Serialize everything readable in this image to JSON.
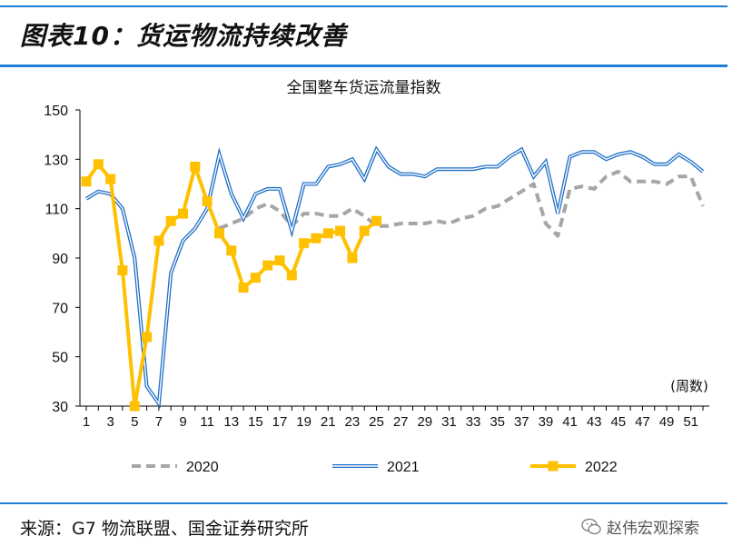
{
  "header": {
    "figure_title": "图表10：货运物流持续改善"
  },
  "footer": {
    "source": "来源：G7 物流联盟、国金证券研究所",
    "watermark": "赵伟宏观探索",
    "watermark_icon": "wechat-icon"
  },
  "colors": {
    "rule": "#1f7ed8",
    "s2020": "#a6a6a6",
    "s2021": "#1f6fc5",
    "s2022": "#ffc000"
  },
  "chart_data": {
    "type": "line",
    "title": "全国整车货运流量指数",
    "xlabel": "(周数)",
    "ylabel": "",
    "ylim": [
      30,
      150
    ],
    "yticks": [
      30,
      50,
      70,
      90,
      110,
      130,
      150
    ],
    "xlim": [
      1,
      52
    ],
    "xticks": [
      1,
      3,
      5,
      7,
      9,
      11,
      13,
      15,
      17,
      19,
      21,
      23,
      25,
      27,
      29,
      31,
      33,
      35,
      37,
      39,
      41,
      43,
      45,
      47,
      49,
      51
    ],
    "grid": false,
    "legend": "bottom",
    "series": [
      {
        "name": "2020",
        "style": "dashed",
        "x": [
          12,
          13,
          14,
          15,
          16,
          17,
          18,
          19,
          20,
          21,
          22,
          23,
          24,
          25,
          26,
          27,
          28,
          29,
          30,
          31,
          32,
          33,
          34,
          35,
          36,
          37,
          38,
          39,
          40,
          41,
          42,
          43,
          44,
          45,
          46,
          47,
          48,
          49,
          50,
          51,
          52
        ],
        "values": [
          102,
          104,
          106,
          110,
          112,
          109,
          103,
          108,
          108,
          107,
          107,
          110,
          107,
          103,
          103,
          104,
          104,
          104,
          105,
          104,
          106,
          107,
          110,
          111,
          114,
          117,
          120,
          104,
          99,
          118,
          119,
          118,
          123,
          125,
          121,
          121,
          121,
          120,
          123,
          123,
          111
        ]
      },
      {
        "name": "2021",
        "style": "double",
        "x": [
          1,
          2,
          3,
          4,
          5,
          6,
          7,
          8,
          9,
          10,
          11,
          12,
          13,
          14,
          15,
          16,
          17,
          18,
          19,
          20,
          21,
          22,
          23,
          24,
          25,
          26,
          27,
          28,
          29,
          30,
          31,
          32,
          33,
          34,
          35,
          36,
          37,
          38,
          39,
          40,
          41,
          42,
          43,
          44,
          45,
          46,
          47,
          48,
          49,
          50,
          51,
          52
        ],
        "values": [
          114,
          117,
          116,
          110,
          90,
          38,
          31,
          84,
          97,
          102,
          110,
          132,
          116,
          106,
          116,
          118,
          118,
          101,
          120,
          120,
          127,
          128,
          130,
          122,
          134,
          127,
          124,
          124,
          123,
          126,
          126,
          126,
          126,
          127,
          127,
          131,
          134,
          123,
          129,
          108,
          131,
          133,
          133,
          130,
          132,
          133,
          131,
          128,
          128,
          132,
          129,
          125
        ]
      },
      {
        "name": "2022",
        "style": "solid-square",
        "x": [
          1,
          2,
          3,
          4,
          5,
          6,
          7,
          8,
          9,
          10,
          11,
          12,
          13,
          14,
          15,
          16,
          17,
          18,
          19,
          20,
          21,
          22,
          23,
          24,
          25
        ],
        "values": [
          121,
          128,
          122,
          85,
          30,
          58,
          97,
          105,
          108,
          127,
          113,
          100,
          93,
          78,
          82,
          87,
          89,
          83,
          96,
          98,
          100,
          101,
          90,
          101,
          105
        ]
      }
    ]
  }
}
